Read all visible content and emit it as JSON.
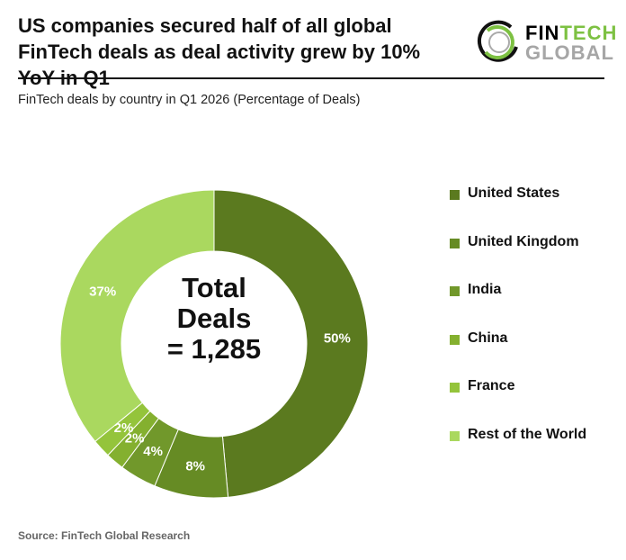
{
  "header": {
    "title": "US companies secured half of all global FinTech deals as deal activity grew by 10% YoY in Q1",
    "logo_line1_a": "FIN",
    "logo_line1_b": "TECH",
    "logo_line2": "GLOBAL"
  },
  "chart_data": {
    "type": "pie",
    "subtitle": "FinTech deals by country in Q1 2026 (Percentage of Deals)",
    "center_label": [
      "Total",
      "Deals",
      "= 1,285"
    ],
    "categories": [
      "United States",
      "United Kingdom",
      "India",
      "China",
      "France",
      "Rest of the World"
    ],
    "values": [
      50,
      8,
      4,
      2,
      2,
      37
    ],
    "labels": [
      "50%",
      "8%",
      "4%",
      "2%",
      "2%",
      "37%"
    ],
    "colors": [
      "#5b7a1f",
      "#668b24",
      "#71982b",
      "#84b02f",
      "#94c43b",
      "#aad85f"
    ],
    "legend_position": "right",
    "donut": true
  },
  "footer": {
    "source": "Source: FinTech Global Research"
  }
}
